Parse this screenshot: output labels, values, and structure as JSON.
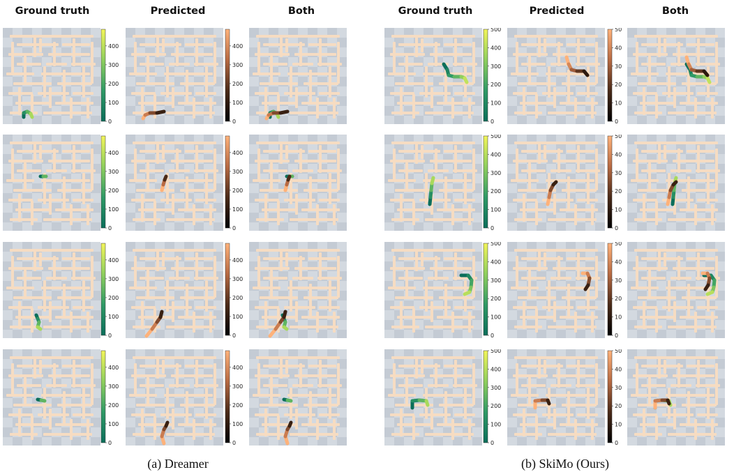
{
  "column_headers": [
    "Ground truth",
    "Predicted",
    "Both"
  ],
  "sections": [
    {
      "caption": "(a) Dreamer",
      "colorbar_ticks": [
        "0",
        "100",
        "200",
        "300",
        "400"
      ],
      "colorbar_max": 490,
      "colormaps": {
        "ground_truth": [
          "#0a6e5a",
          "#2f9a66",
          "#8fcf5d",
          "#f2f55a"
        ],
        "predicted": [
          "#000000",
          "#4a2a18",
          "#b86a42",
          "#ffb27a"
        ]
      }
    },
    {
      "caption": "(b) SkiMo (Ours)",
      "colorbar_ticks": {
        "ground_truth": [
          "0",
          "100",
          "200",
          "300",
          "400",
          "500"
        ],
        "predicted": [
          "0",
          "10",
          "20",
          "30",
          "40",
          "50"
        ]
      },
      "colorbar_max": {
        "ground_truth": 500,
        "predicted": 50
      },
      "colormaps": {
        "ground_truth": [
          "#0a6e5a",
          "#2f9a66",
          "#8fcf5d",
          "#f2f55a"
        ],
        "predicted": [
          "#000000",
          "#4a2a18",
          "#b86a42",
          "#ffb27a"
        ]
      }
    }
  ],
  "maze_colors": {
    "tile_light": "#d3d9e0",
    "tile_dark": "#c4cbd4",
    "wall": "#f6dcc2"
  }
}
